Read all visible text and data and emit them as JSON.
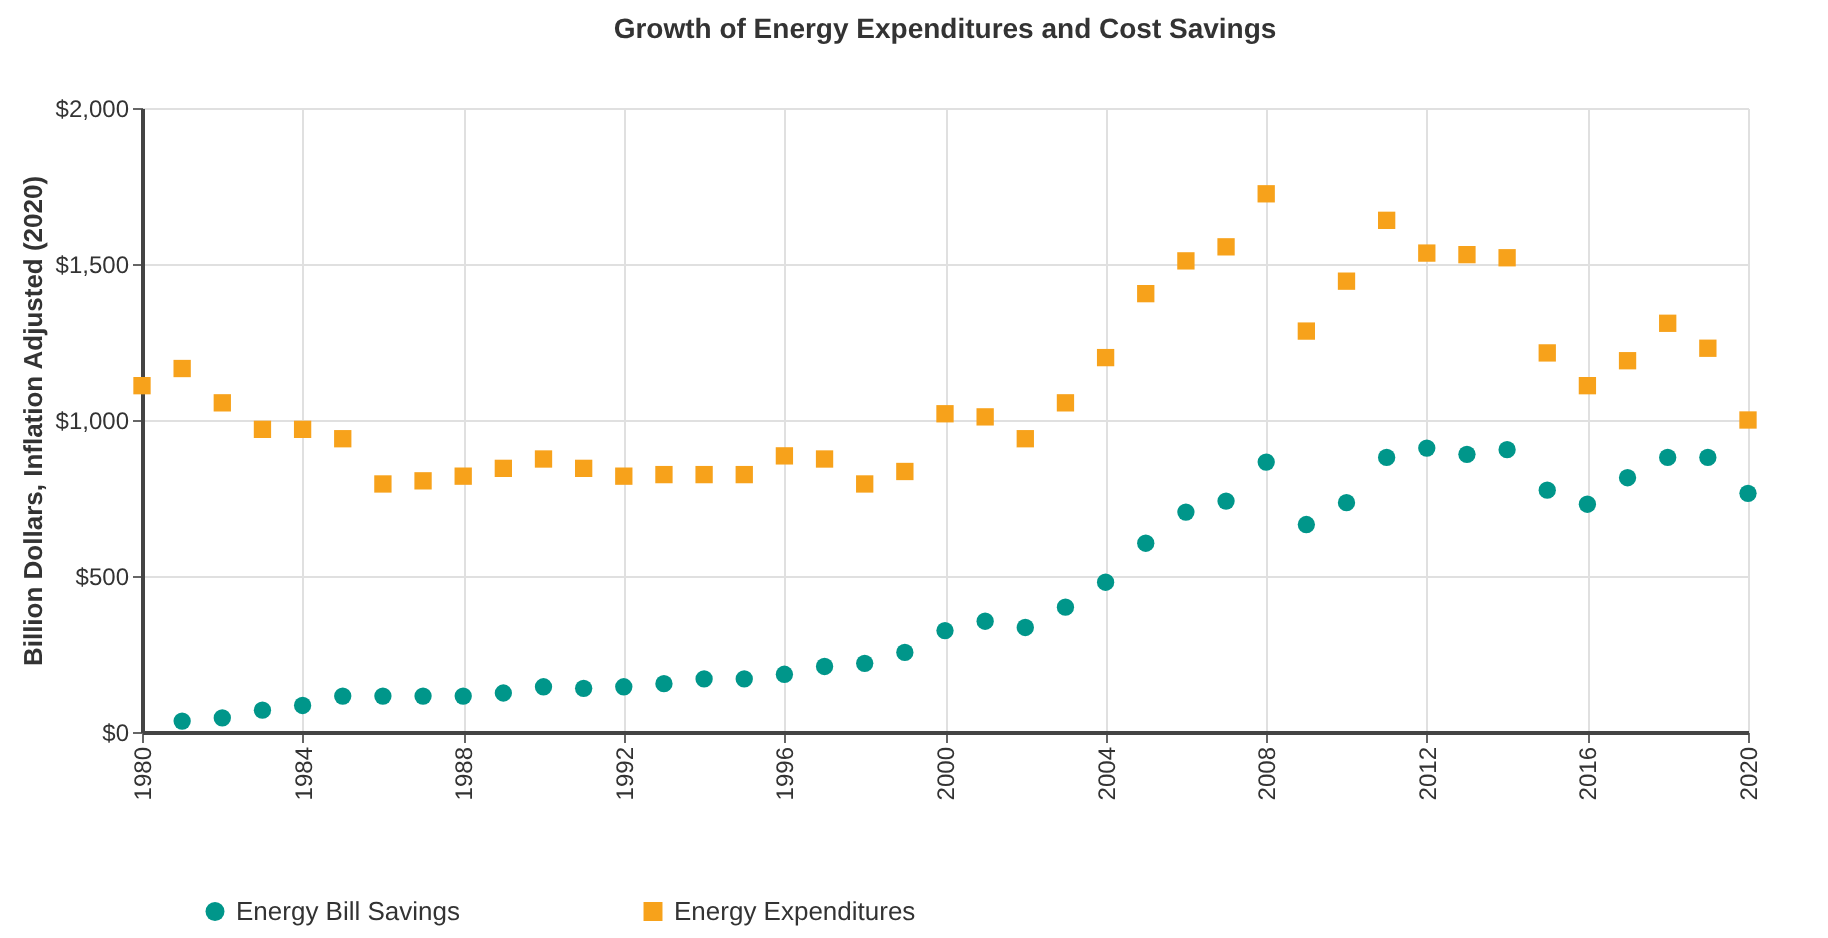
{
  "chart_data": {
    "type": "scatter",
    "title": "Growth of Energy Expenditures and Cost Savings",
    "ylabel": "Billion Dollars, Inflation Adjusted (2020)",
    "xlim": [
      1980,
      2020
    ],
    "xticks": [
      1980,
      1984,
      1988,
      1992,
      1996,
      2000,
      2004,
      2008,
      2012,
      2016,
      2020
    ],
    "ylim": [
      0,
      2000
    ],
    "yticks": [
      {
        "value": 0,
        "label": "$0"
      },
      {
        "value": 500,
        "label": "$500"
      },
      {
        "value": 1000,
        "label": "$1,000"
      },
      {
        "value": 1500,
        "label": "$1,500"
      },
      {
        "value": 2000,
        "label": "$2,000"
      }
    ],
    "grid": true,
    "legend": "bottom left",
    "series": [
      {
        "name": "Energy Bill Savings",
        "color": "#00968a",
        "marker": "circle",
        "x": [
          1981,
          1982,
          1983,
          1984,
          1985,
          1986,
          1987,
          1988,
          1989,
          1990,
          1991,
          1992,
          1993,
          1994,
          1995,
          1996,
          1997,
          1998,
          1999,
          2000,
          2001,
          2002,
          2003,
          2004,
          2005,
          2006,
          2007,
          2008,
          2009,
          2010,
          2011,
          2012,
          2013,
          2014,
          2015,
          2016,
          2017,
          2018,
          2019,
          2020
        ],
        "values": [
          35,
          45,
          70,
          85,
          115,
          115,
          115,
          115,
          125,
          145,
          140,
          145,
          155,
          170,
          170,
          185,
          210,
          220,
          255,
          325,
          355,
          335,
          400,
          480,
          605,
          705,
          740,
          865,
          665,
          735,
          880,
          910,
          890,
          905,
          775,
          730,
          815,
          880,
          880,
          765
        ]
      },
      {
        "name": "Energy Expenditures",
        "color": "#f7a21b",
        "marker": "square",
        "x": [
          1980,
          1981,
          1982,
          1983,
          1984,
          1985,
          1986,
          1987,
          1988,
          1989,
          1990,
          1991,
          1992,
          1993,
          1994,
          1995,
          1996,
          1997,
          1998,
          1999,
          2000,
          2001,
          2002,
          2003,
          2004,
          2005,
          2006,
          2007,
          2008,
          2009,
          2010,
          2011,
          2012,
          2013,
          2014,
          2015,
          2016,
          2017,
          2018,
          2019,
          2020
        ],
        "values": [
          1110,
          1165,
          1055,
          970,
          970,
          940,
          795,
          805,
          820,
          845,
          875,
          845,
          820,
          825,
          825,
          825,
          885,
          875,
          795,
          835,
          1020,
          1010,
          940,
          1055,
          1200,
          1405,
          1510,
          1555,
          1725,
          1285,
          1445,
          1640,
          1535,
          1530,
          1520,
          1215,
          1110,
          1190,
          1310,
          1230,
          1000
        ]
      }
    ]
  }
}
